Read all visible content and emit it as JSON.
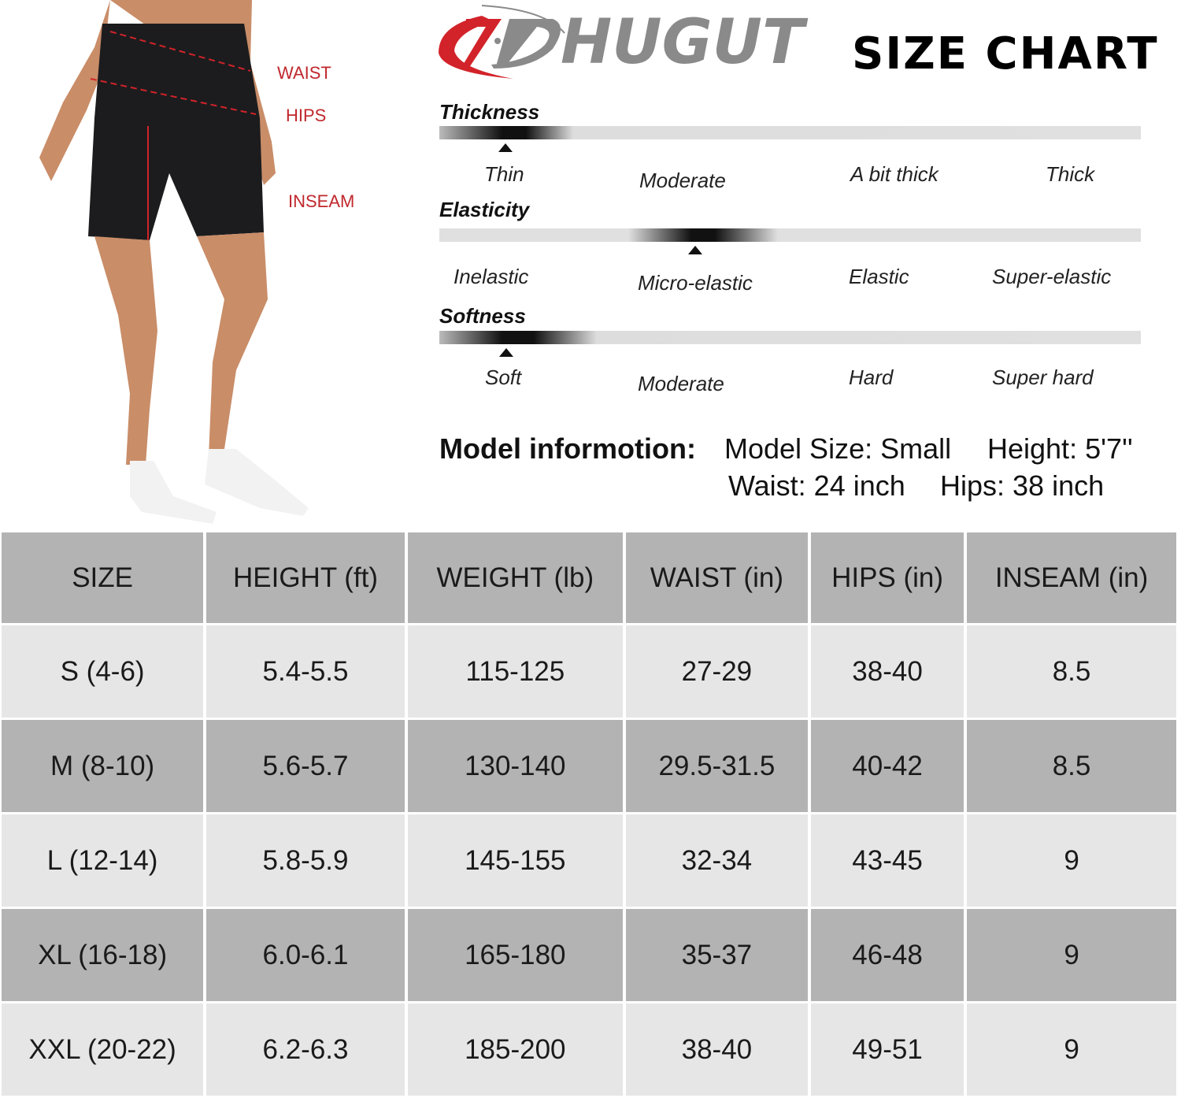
{
  "brand": {
    "logo_text": "HUGUT",
    "title": "SIZE CHART",
    "colors": {
      "red": "#d2232a",
      "gray": "#8a8a8a"
    }
  },
  "measure_labels": {
    "waist": "WAIST",
    "hips": "HIPS",
    "inseam": "INSEAM"
  },
  "scales": [
    {
      "name": "Thickness",
      "options": [
        "Thin",
        "Moderate",
        "A bit thick",
        "Thick"
      ],
      "selected": "Thin"
    },
    {
      "name": "Elasticity",
      "options": [
        "Inelastic",
        "Micro-elastic",
        "Elastic",
        "Super-elastic"
      ],
      "selected": "Micro-elastic"
    },
    {
      "name": "Softness",
      "options": [
        "Soft",
        "Moderate",
        "Hard",
        "Super hard"
      ],
      "selected": "Soft"
    }
  ],
  "model": {
    "label": "Model informotion:",
    "size": "Model Size: Small",
    "height": "Height: 5'7''",
    "waist": "Waist: 24 inch",
    "hips": "Hips: 38 inch"
  },
  "table": {
    "headers": [
      "SIZE",
      "HEIGHT (ft)",
      "WEIGHT (lb)",
      "WAIST (in)",
      "HIPS (in)",
      "INSEAM (in)"
    ],
    "rows": [
      [
        "S (4-6)",
        "5.4-5.5",
        "115-125",
        "27-29",
        "38-40",
        "8.5"
      ],
      [
        "M (8-10)",
        "5.6-5.7",
        "130-140",
        "29.5-31.5",
        "40-42",
        "8.5"
      ],
      [
        "L (12-14)",
        "5.8-5.9",
        "145-155",
        "32-34",
        "43-45",
        "9"
      ],
      [
        "XL (16-18)",
        "6.0-6.1",
        "165-180",
        "35-37",
        "46-48",
        "9"
      ],
      [
        "XXL (20-22)",
        "6.2-6.3",
        "185-200",
        "38-40",
        "49-51",
        "9"
      ]
    ]
  }
}
